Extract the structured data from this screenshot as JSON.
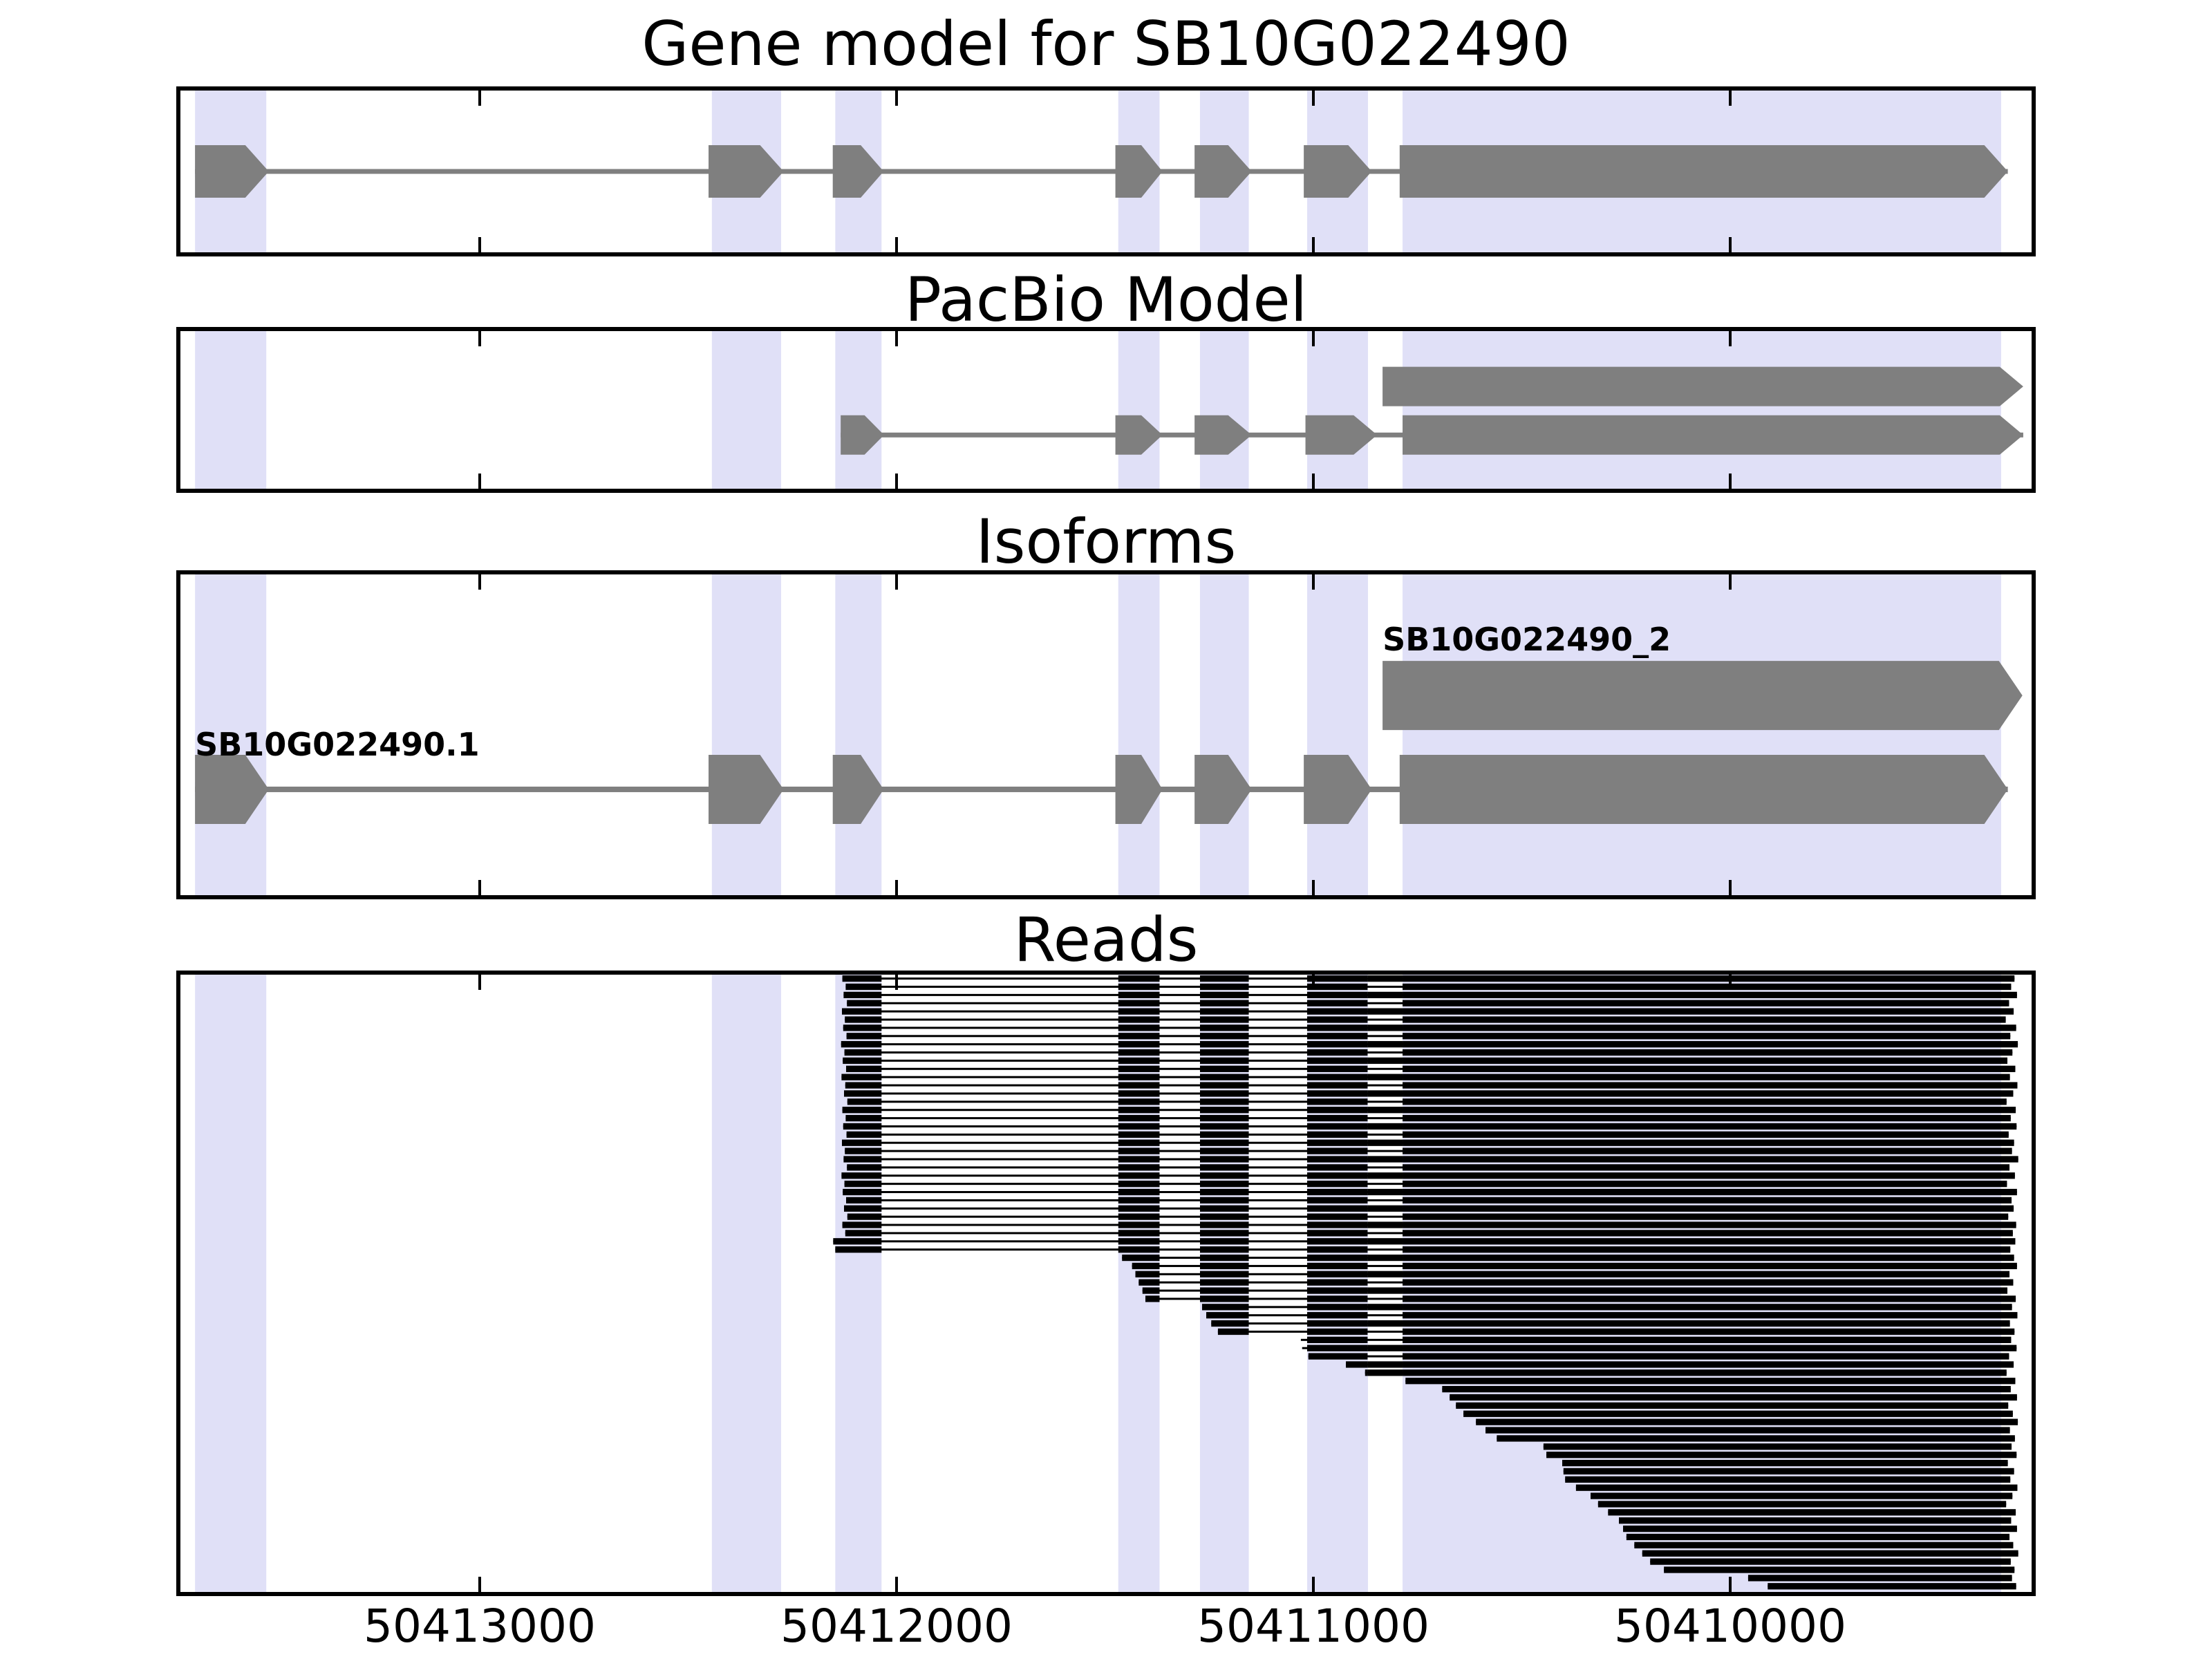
{
  "chart_data": {
    "type": "gene-structure-plot",
    "gene_id": "SB10G022490",
    "axis": {
      "xlim": [
        50413723,
        50409272
      ],
      "reversed": true,
      "units": "bp",
      "grid": false,
      "ticks": [
        {
          "label": "50413000",
          "value": 50413000
        },
        {
          "label": "50412000",
          "value": 50412000
        },
        {
          "label": "50411000",
          "value": 50411000
        },
        {
          "label": "50410000",
          "value": 50410000
        }
      ]
    },
    "style": {
      "background_color": "#ffffff",
      "band_color": "#e0e0f7",
      "exon_color": "#7f7f7f",
      "read_color": "#000000",
      "border_color": "#000000",
      "text_color": "#000000"
    },
    "highlight_bands": [
      {
        "start": 50413512,
        "end": 50413683
      },
      {
        "start": 50412277,
        "end": 50412443
      },
      {
        "start": 50412036,
        "end": 50412147
      },
      {
        "start": 50411369,
        "end": 50411468
      },
      {
        "start": 50411155,
        "end": 50411272
      },
      {
        "start": 50410869,
        "end": 50411015
      },
      {
        "start": 50409350,
        "end": 50410786
      }
    ],
    "panels": [
      {
        "title": "Gene model for SB10G022490",
        "type": "transcripts",
        "transcripts": [
          {
            "name": "",
            "strand": "right",
            "exons": [
              [
                50413506,
                50413683
              ],
              [
                50412271,
                50412451
              ],
              [
                50412031,
                50412153
              ],
              [
                50411362,
                50411475
              ],
              [
                50411148,
                50411285
              ],
              [
                50410860,
                50411023
              ],
              [
                50409334,
                50410793
              ]
            ]
          }
        ]
      },
      {
        "title": "PacBio Model",
        "type": "transcripts",
        "transcripts": [
          {
            "name": "",
            "strand": "right",
            "exons": [
              [
                50409297,
                50410834
              ]
            ]
          },
          {
            "name": "",
            "strand": "right",
            "exons": [
              [
                50412030,
                50412134
              ],
              [
                50411362,
                50411475
              ],
              [
                50411148,
                50411285
              ],
              [
                50410847,
                50411019
              ],
              [
                50409297,
                50410786
              ]
            ]
          }
        ]
      },
      {
        "title": "Isoforms",
        "type": "transcripts",
        "transcripts": [
          {
            "name": "SB10G022490_2",
            "strand": "right",
            "label_anchor": 50410834,
            "exons": [
              [
                50409299,
                50410834
              ]
            ]
          },
          {
            "name": "SB10G022490.1",
            "strand": "right",
            "label_anchor": 50413683,
            "exons": [
              [
                50413506,
                50413683
              ],
              [
                50412271,
                50412451
              ],
              [
                50412031,
                50412153
              ],
              [
                50411362,
                50411475
              ],
              [
                50411148,
                50411285
              ],
              [
                50410860,
                50411023
              ],
              [
                50409334,
                50410793
              ]
            ]
          }
        ]
      },
      {
        "title": "Reads",
        "type": "reads",
        "read_blocks": {
          "exon_blocks": [
            [
              50412036,
              50412155
            ],
            [
              50411369,
              50411468
            ],
            [
              50411155,
              50411272
            ],
            [
              50410870,
              50411015
            ]
          ],
          "gap_block": [
            50410786,
            50410870
          ],
          "last_block_left": 50410786
        },
        "reads": [
          [
            50412130,
            50409318,
            1
          ],
          [
            50412122,
            50409326,
            0
          ],
          [
            50412127,
            50409312,
            1
          ],
          [
            50412119,
            50409331,
            0
          ],
          [
            50412131,
            50409320,
            1
          ],
          [
            50412124,
            50409339,
            0
          ],
          [
            50412128,
            50409314,
            1
          ],
          [
            50412120,
            50409328,
            0
          ],
          [
            50412133,
            50409310,
            1
          ],
          [
            50412125,
            50409323,
            0
          ],
          [
            50412129,
            50409335,
            1
          ],
          [
            50412121,
            50409316,
            0
          ],
          [
            50412132,
            50409329,
            1
          ],
          [
            50412123,
            50409311,
            0
          ],
          [
            50412126,
            50409321,
            1
          ],
          [
            50412118,
            50409337,
            0
          ],
          [
            50412130,
            50409315,
            1
          ],
          [
            50412122,
            50409327,
            0
          ],
          [
            50412128,
            50409313,
            1
          ],
          [
            50412120,
            50409332,
            0
          ],
          [
            50412131,
            50409319,
            1
          ],
          [
            50412124,
            50409324,
            0
          ],
          [
            50412127,
            50409309,
            1
          ],
          [
            50412119,
            50409330,
            0
          ],
          [
            50412132,
            50409317,
            1
          ],
          [
            50412125,
            50409336,
            0
          ],
          [
            50412129,
            50409312,
            1
          ],
          [
            50412121,
            50409325,
            0
          ],
          [
            50412126,
            50409320,
            1
          ],
          [
            50412118,
            50409333,
            0
          ],
          [
            50412130,
            50409314,
            1
          ],
          [
            50412123,
            50409322,
            0
          ],
          [
            50412152,
            50409316,
            1
          ],
          [
            50412147,
            50409328,
            0
          ],
          [
            50411459,
            50409319,
            1
          ],
          [
            50411435,
            50409312,
            0
          ],
          [
            50411427,
            50409330,
            1
          ],
          [
            50411419,
            50409321,
            0
          ],
          [
            50411410,
            50409335,
            1
          ],
          [
            50411403,
            50409315,
            0
          ],
          [
            50411267,
            50409324,
            1
          ],
          [
            50411257,
            50409311,
            0
          ],
          [
            50411245,
            50409329,
            1
          ],
          [
            50411229,
            50409318,
            0
          ],
          [
            50411030,
            50409326,
            0
          ],
          [
            50411027,
            50409313,
            1
          ],
          [
            50411012,
            50409331,
            0
          ],
          [
            50410922,
            50409320,
            1
          ],
          [
            50410876,
            50409337,
            1
          ],
          [
            50410779,
            50409316,
            1
          ],
          [
            50410691,
            50409327,
            1
          ],
          [
            50410673,
            50409312,
            1
          ],
          [
            50410658,
            50409333,
            1
          ],
          [
            50410640,
            50409322,
            1
          ],
          [
            50410610,
            50409310,
            1
          ],
          [
            50410587,
            50409329,
            1
          ],
          [
            50410560,
            50409317,
            1
          ],
          [
            50410448,
            50409325,
            1
          ],
          [
            50410441,
            50409313,
            1
          ],
          [
            50410403,
            50409334,
            1
          ],
          [
            50410400,
            50409319,
            1
          ],
          [
            50410396,
            50409328,
            1
          ],
          [
            50410370,
            50409311,
            1
          ],
          [
            50410335,
            50409323,
            1
          ],
          [
            50410317,
            50409338,
            1
          ],
          [
            50410293,
            50409315,
            1
          ],
          [
            50410267,
            50409326,
            1
          ],
          [
            50410257,
            50409312,
            1
          ],
          [
            50410249,
            50409330,
            1
          ],
          [
            50410230,
            50409321,
            1
          ],
          [
            50410211,
            50409309,
            1
          ],
          [
            50410192,
            50409327,
            1
          ],
          [
            50410159,
            50409318,
            1
          ],
          [
            50409957,
            50409324,
            1
          ],
          [
            50409910,
            50409314,
            1
          ]
        ]
      }
    ]
  }
}
